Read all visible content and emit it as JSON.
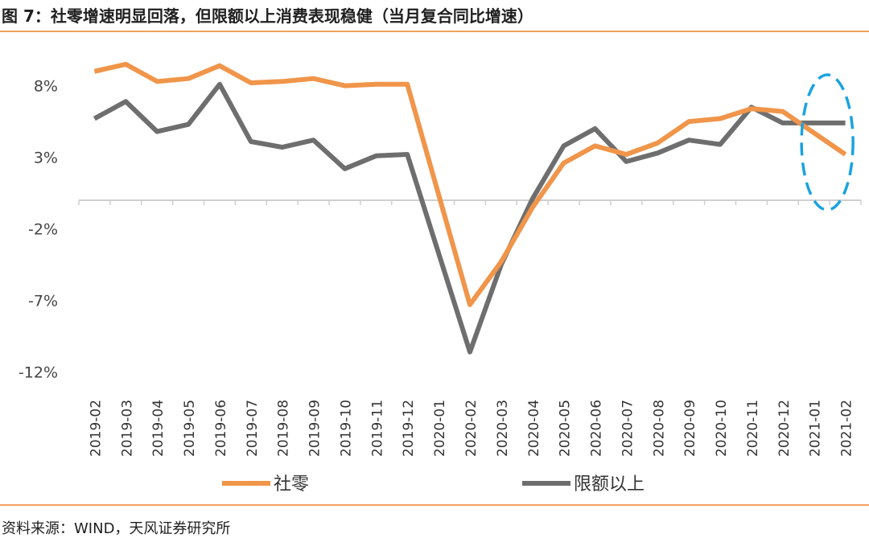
{
  "title": "图 7：社零增速明显回落，但限额以上消费表现稳健（当月复合同比增速）",
  "source": "资料来源：WIND，天风证券研究所",
  "chart_data": {
    "type": "line",
    "categories": [
      "2019-02",
      "2019-03",
      "2019-04",
      "2019-05",
      "2019-06",
      "2019-07",
      "2019-08",
      "2019-09",
      "2019-10",
      "2019-11",
      "2019-12",
      "2020-01",
      "2020-02",
      "2020-03",
      "2020-04",
      "2020-05",
      "2020-06",
      "2020-07",
      "2020-08",
      "2020-09",
      "2020-10",
      "2020-11",
      "2020-12",
      "2021-01",
      "2021-02"
    ],
    "y_ticks": [
      "8%",
      "3%",
      "-2%",
      "-7%",
      "-12%"
    ],
    "y_tick_values": [
      8,
      3,
      -2,
      -7,
      -12
    ],
    "ylim": [
      -12.5,
      11
    ],
    "series": [
      {
        "name": "社零",
        "color": "#f0954a",
        "values": [
          9.0,
          9.5,
          8.3,
          8.5,
          9.4,
          8.2,
          8.3,
          8.5,
          8.0,
          8.1,
          8.1,
          null,
          -7.3,
          -4.3,
          -0.5,
          2.6,
          3.8,
          3.2,
          4.0,
          5.5,
          5.7,
          6.4,
          6.2,
          4.7,
          3.2
        ]
      },
      {
        "name": "限额以上",
        "color": "#6e6e6e",
        "values": [
          5.7,
          6.9,
          4.8,
          5.3,
          8.1,
          4.1,
          3.7,
          4.2,
          2.2,
          3.1,
          3.2,
          null,
          -10.6,
          -4.5,
          0.1,
          3.8,
          5.0,
          2.7,
          3.3,
          4.2,
          3.9,
          6.5,
          5.4,
          5.4,
          5.4
        ]
      }
    ],
    "annotation": "dashed-ellipse highlight around 2021-01 to 2021-02"
  }
}
